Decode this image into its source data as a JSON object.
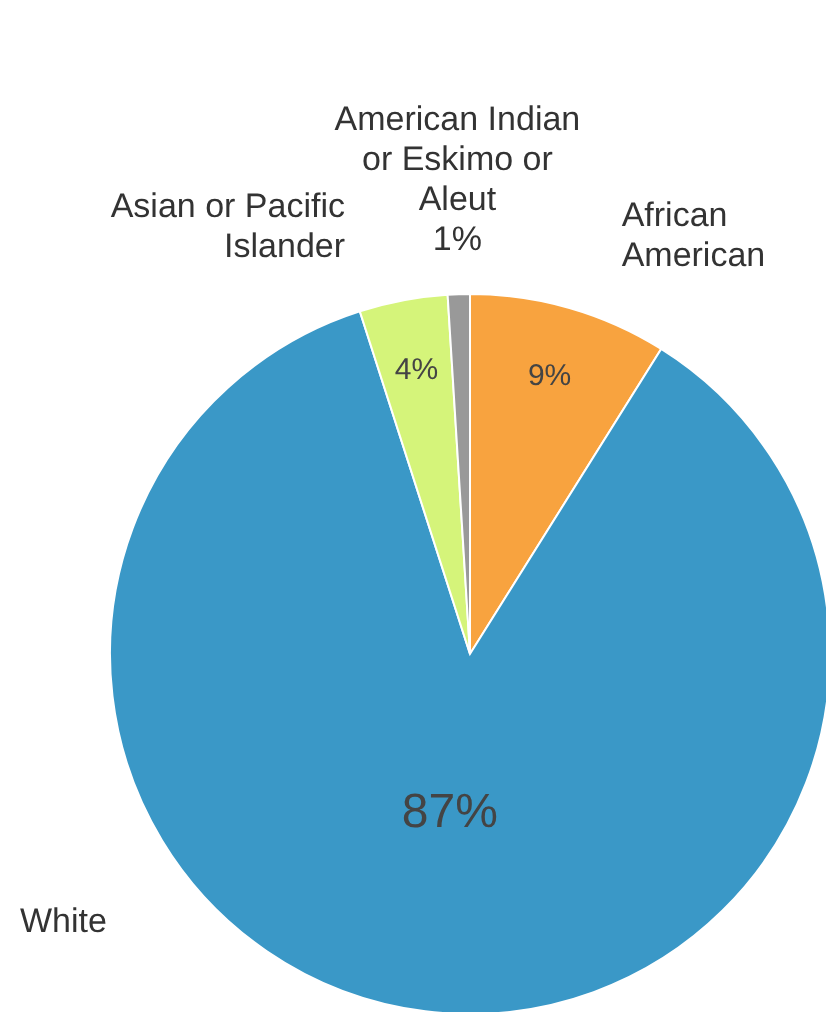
{
  "chart_data": {
    "type": "pie",
    "categories": [
      "African American",
      "White",
      "Asian or Pacific Islander",
      "American Indian or Eskimo or Aleut"
    ],
    "values": [
      9,
      87,
      4,
      1
    ],
    "colors": [
      "#f8a33f",
      "#3a98c7",
      "#d5f47a",
      "#999999"
    ],
    "value_labels": [
      "9%",
      "87%",
      "4%",
      "1%"
    ]
  }
}
